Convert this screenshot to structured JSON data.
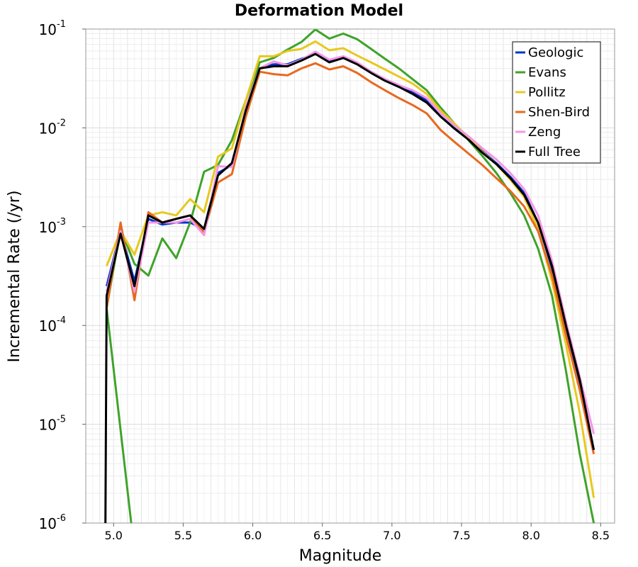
{
  "chart_data": {
    "type": "line",
    "title": "Deformation Model",
    "xlabel": "Magnitude",
    "ylabel": "Incremental Rate (/yr)",
    "xlim": [
      4.8,
      8.6
    ],
    "ylim": [
      1e-06,
      0.1
    ],
    "yscale": "log",
    "grid": true,
    "legend_position": "top-right",
    "xticks": [
      "5.0",
      "5.5",
      "6.0",
      "6.5",
      "7.0",
      "7.5",
      "8.0",
      "8.5"
    ],
    "xtick_values": [
      5.0,
      5.5,
      6.0,
      6.5,
      7.0,
      7.5,
      8.0,
      8.5
    ],
    "yticks": [
      {
        "base": "10",
        "exp": "-6",
        "value": 1e-06
      },
      {
        "base": "10",
        "exp": "-5",
        "value": 1e-05
      },
      {
        "base": "10",
        "exp": "-4",
        "value": 0.0001
      },
      {
        "base": "10",
        "exp": "-3",
        "value": 0.001
      },
      {
        "base": "10",
        "exp": "-2",
        "value": 0.01
      },
      {
        "base": "10",
        "exp": "-1",
        "value": 0.1
      }
    ],
    "x": [
      4.95,
      5.05,
      5.15,
      5.25,
      5.35,
      5.45,
      5.55,
      5.65,
      5.75,
      5.85,
      5.95,
      6.05,
      6.15,
      6.25,
      6.35,
      6.45,
      6.55,
      6.65,
      6.75,
      6.85,
      6.95,
      7.05,
      7.15,
      7.25,
      7.35,
      7.45,
      7.55,
      7.65,
      7.75,
      7.85,
      7.95,
      8.05,
      8.15,
      8.25,
      8.35,
      8.45
    ],
    "series": [
      {
        "name": "Geologic",
        "color": "#0033cc",
        "values": [
          0.00025,
          0.0009,
          0.00028,
          0.0012,
          0.00105,
          0.0011,
          0.0011,
          0.00095,
          0.0035,
          0.0042,
          0.015,
          0.04,
          0.044,
          0.044,
          0.05,
          0.056,
          0.048,
          0.052,
          0.045,
          0.037,
          0.031,
          0.027,
          0.023,
          0.019,
          0.013,
          0.01,
          0.0078,
          0.0058,
          0.0044,
          0.0032,
          0.0022,
          0.0011,
          0.00038,
          9e-05,
          2.6e-05,
          5.5e-06
        ]
      },
      {
        "name": "Evans",
        "color": "#3fa32a",
        "start_below_axis": 5.15,
        "values": [
          0.00015,
          0.00095,
          0.00042,
          0.00032,
          0.00076,
          0.00048,
          0.0011,
          0.0036,
          0.0042,
          0.0075,
          0.019,
          0.046,
          0.051,
          0.062,
          0.074,
          0.099,
          0.08,
          0.09,
          0.079,
          0.063,
          0.05,
          0.04,
          0.031,
          0.024,
          0.016,
          0.011,
          0.0075,
          0.0052,
          0.0035,
          0.0022,
          0.0013,
          0.0006,
          0.0002,
          3.5e-05,
          5e-06,
          1e-06
        ]
      },
      {
        "name": "Pollitz",
        "color": "#e8c81e",
        "values": [
          0.0004,
          0.0009,
          0.00052,
          0.0013,
          0.0014,
          0.0013,
          0.0019,
          0.0014,
          0.0051,
          0.0062,
          0.019,
          0.053,
          0.053,
          0.06,
          0.063,
          0.075,
          0.061,
          0.064,
          0.054,
          0.046,
          0.039,
          0.033,
          0.028,
          0.022,
          0.015,
          0.011,
          0.008,
          0.0057,
          0.0043,
          0.003,
          0.002,
          0.00095,
          0.00028,
          6.5e-05,
          1.3e-05,
          1.8e-06
        ]
      },
      {
        "name": "Shen-Bird",
        "color": "#e8691e",
        "values": [
          0.00015,
          0.0011,
          0.00018,
          0.0014,
          0.0011,
          0.0012,
          0.0013,
          0.00088,
          0.0028,
          0.0034,
          0.013,
          0.037,
          0.035,
          0.034,
          0.04,
          0.045,
          0.039,
          0.042,
          0.036,
          0.029,
          0.024,
          0.02,
          0.017,
          0.014,
          0.0095,
          0.0072,
          0.0055,
          0.0042,
          0.0031,
          0.0023,
          0.0016,
          0.0009,
          0.00032,
          8e-05,
          2.2e-05,
          5e-06
        ]
      },
      {
        "name": "Zeng",
        "color": "#f596e6",
        "values": [
          0.00022,
          0.0009,
          0.00022,
          0.0011,
          0.0011,
          0.0011,
          0.0012,
          0.00082,
          0.0041,
          0.004,
          0.016,
          0.04,
          0.047,
          0.043,
          0.049,
          0.059,
          0.049,
          0.053,
          0.046,
          0.037,
          0.031,
          0.027,
          0.024,
          0.02,
          0.014,
          0.0105,
          0.0082,
          0.0062,
          0.0048,
          0.0035,
          0.0024,
          0.0013,
          0.00045,
          0.00011,
          3e-05,
          8e-06
        ]
      },
      {
        "name": "Full Tree",
        "color": "#000000",
        "start_below_axis": 4.94,
        "values": [
          0.0002,
          0.00085,
          0.00025,
          0.0013,
          0.0011,
          0.0012,
          0.0013,
          0.00095,
          0.0033,
          0.0044,
          0.015,
          0.04,
          0.042,
          0.042,
          0.048,
          0.056,
          0.046,
          0.051,
          0.044,
          0.036,
          0.03,
          0.026,
          0.022,
          0.018,
          0.013,
          0.0098,
          0.0076,
          0.0056,
          0.0043,
          0.0031,
          0.0021,
          0.0011,
          0.0004,
          0.0001,
          2.8e-05,
          5.5e-06
        ]
      }
    ]
  }
}
